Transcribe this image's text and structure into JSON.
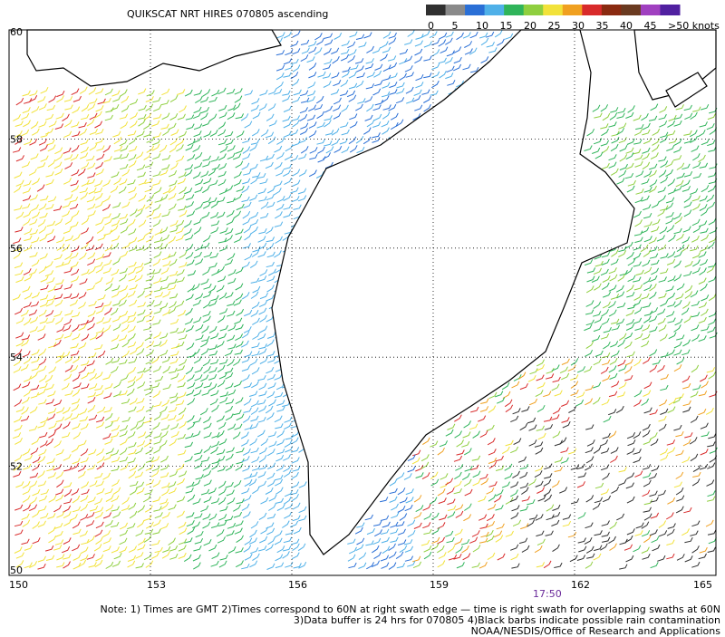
{
  "header": {
    "title": "QUIKSCAT NRT HIRES 070805 ascending"
  },
  "colorbar": {
    "labels": [
      "0",
      "5",
      "10",
      "15",
      "20",
      "25",
      "30",
      "35",
      "40",
      "45",
      ">50 knots"
    ],
    "colors": [
      "#303030",
      "#8a8a8a",
      "#2a6fd6",
      "#4fb0e8",
      "#2fb45a",
      "#8fcf3f",
      "#f2e23a",
      "#f0a020",
      "#d82a2a",
      "#8a2a10",
      "#6a3a20",
      "#a040c0",
      "#5020a0"
    ]
  },
  "map": {
    "lat_ticks": [
      60,
      58,
      56,
      54,
      52,
      50
    ],
    "lon_ticks": [
      150,
      153,
      156,
      159,
      162,
      165
    ],
    "time": "17:50"
  },
  "notes": [
    "Note: 1) Times are GMT 2)Times correspond to 60N at right swath edge — time is right swath for overlapping swaths at 60N",
    "3)Data buffer is 24 hrs for 070805 4)Black barbs indicate possible rain contamination",
    "NOAA/NESDIS/Office of Research and Applications"
  ]
}
